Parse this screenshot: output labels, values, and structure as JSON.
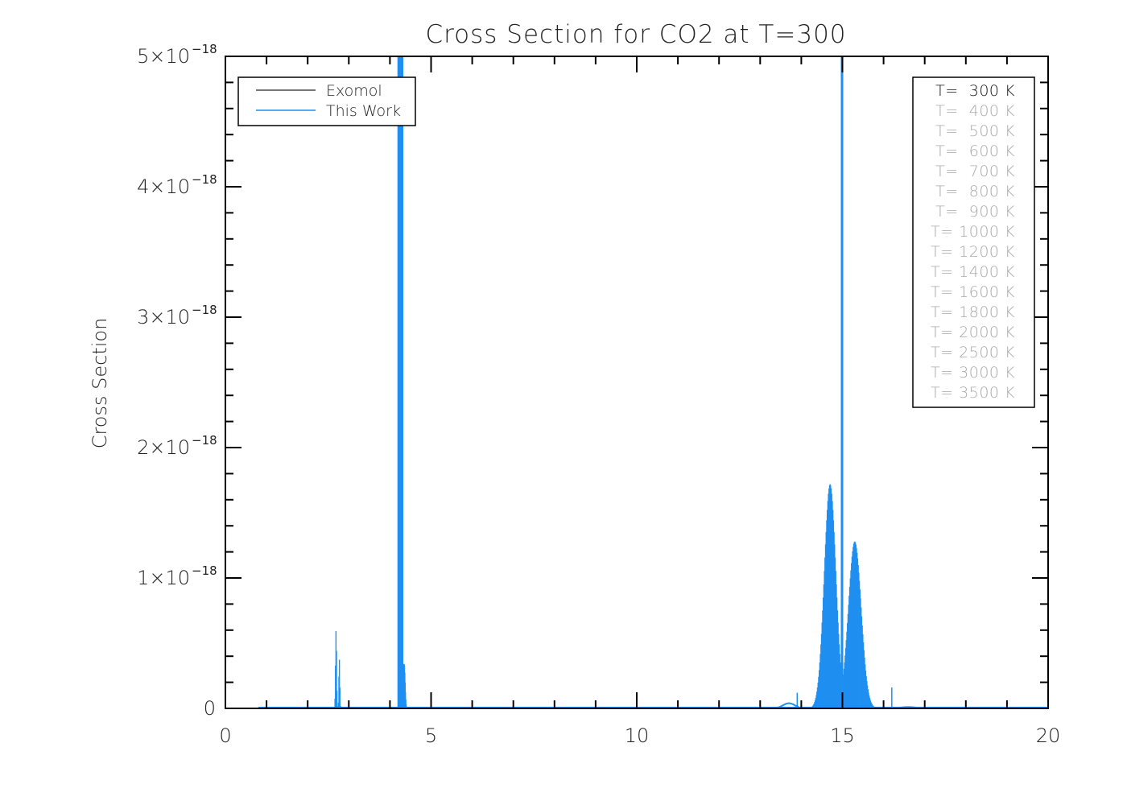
{
  "chart_data": {
    "type": "line",
    "title": "Cross Section for CO2 at T=300",
    "xlabel": "",
    "ylabel": "Cross Section",
    "xlim": [
      0,
      20
    ],
    "ylim": [
      0,
      5e-18
    ],
    "x_ticks": [
      {
        "value": 0,
        "label": "0"
      },
      {
        "value": 5,
        "label": "5"
      },
      {
        "value": 10,
        "label": "10"
      },
      {
        "value": 15,
        "label": "15"
      },
      {
        "value": 20,
        "label": "20"
      }
    ],
    "y_ticks": [
      {
        "value": 0,
        "label": "0",
        "exp": ""
      },
      {
        "value": 1e-18,
        "label": "1×10",
        "exp": "−18"
      },
      {
        "value": 2e-18,
        "label": "2×10",
        "exp": "−18"
      },
      {
        "value": 3e-18,
        "label": "3×10",
        "exp": "−18"
      },
      {
        "value": 4e-18,
        "label": "4×10",
        "exp": "−18"
      },
      {
        "value": 5e-18,
        "label": "5×10",
        "exp": "−18"
      }
    ],
    "legend": {
      "placement": "top-left",
      "entries": [
        {
          "name": "Exomol",
          "color": "#4a4a4a"
        },
        {
          "name": "This Work",
          "color": "#1f8ff0"
        }
      ]
    },
    "series": [
      {
        "name": "This Work",
        "color": "#1f8ff0",
        "peaks": [
          {
            "x": 2.69,
            "y": 6e-19
          },
          {
            "x": 2.77,
            "y": 3.8e-19
          },
          {
            "x": 4.26,
            "y": 5e-18
          },
          {
            "x": 4.35,
            "y": 3.4e-19
          },
          {
            "x": 13.9,
            "y": 1.2e-19
          },
          {
            "x": 14.7,
            "y": 1.72e-18
          },
          {
            "x": 14.99,
            "y": 5e-18
          },
          {
            "x": 15.3,
            "y": 1.28e-18
          },
          {
            "x": 16.2,
            "y": 1.6e-19
          }
        ]
      }
    ],
    "temperature_panel": {
      "placement": "top-right",
      "items": [
        {
          "label": "T=  300 K",
          "active": true
        },
        {
          "label": "T=  400 K",
          "active": false
        },
        {
          "label": "T=  500 K",
          "active": false
        },
        {
          "label": "T=  600 K",
          "active": false
        },
        {
          "label": "T=  700 K",
          "active": false
        },
        {
          "label": "T=  800 K",
          "active": false
        },
        {
          "label": "T=  900 K",
          "active": false
        },
        {
          "label": "T= 1000 K",
          "active": false
        },
        {
          "label": "T= 1200 K",
          "active": false
        },
        {
          "label": "T= 1400 K",
          "active": false
        },
        {
          "label": "T= 1600 K",
          "active": false
        },
        {
          "label": "T= 1800 K",
          "active": false
        },
        {
          "label": "T= 2000 K",
          "active": false
        },
        {
          "label": "T= 2500 K",
          "active": false
        },
        {
          "label": "T= 3000 K",
          "active": false
        },
        {
          "label": "T= 3500 K",
          "active": false
        }
      ],
      "active_color": "#111111",
      "inactive_color": "#a8a8a8"
    }
  }
}
